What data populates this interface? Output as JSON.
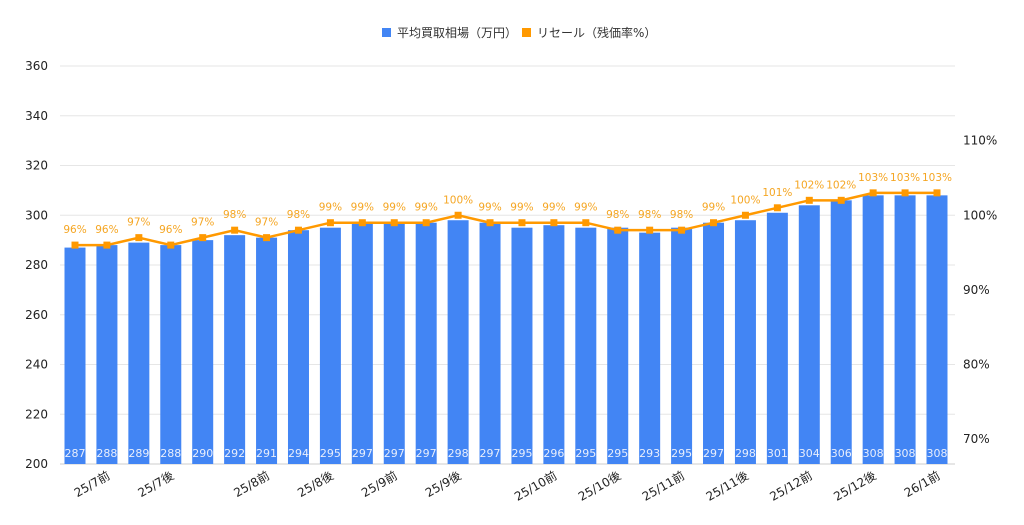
{
  "chart_data": {
    "type": "bar+line",
    "title": "",
    "legend_position": "top",
    "grid": true,
    "categories": [
      "",
      "25/7前",
      "",
      "25/7後",
      "",
      "",
      "25/8前",
      "",
      "25/8後",
      "",
      "25/9前",
      "",
      "25/9後",
      "",
      "",
      "25/10前",
      "",
      "25/10後",
      "",
      "25/11前",
      "",
      "25/11後",
      "",
      "25/12前",
      "",
      "25/12後",
      "",
      "26/1前"
    ],
    "series": [
      {
        "name": "平均買取相場（万円）",
        "type": "bar",
        "axis": "left",
        "color": "#4285f4",
        "values": [
          287,
          288,
          289,
          288,
          290,
          292,
          291,
          294,
          295,
          297,
          297,
          297,
          298,
          297,
          295,
          296,
          295,
          295,
          293,
          295,
          297,
          298,
          301,
          304,
          306,
          308,
          308,
          308
        ],
        "data_labels": [
          "287",
          "288",
          "289",
          "288",
          "290",
          "292",
          "291",
          "294",
          "295",
          "297",
          "297",
          "297",
          "298",
          "297",
          "295",
          "296",
          "295",
          "295",
          "293",
          "295",
          "297",
          "298",
          "301",
          "304",
          "306",
          "308",
          "308",
          "308"
        ]
      },
      {
        "name": "リセール（残価率%）",
        "type": "line",
        "axis": "right",
        "color": "#ff9900",
        "values": [
          96,
          96,
          97,
          96,
          97,
          98,
          97,
          98,
          99,
          99,
          99,
          99,
          100,
          99,
          99,
          99,
          99,
          98,
          98,
          98,
          99,
          100,
          101,
          102,
          102,
          103,
          103,
          103
        ],
        "data_labels": [
          "96%",
          "96%",
          "97%",
          "96%",
          "97%",
          "98%",
          "97%",
          "98%",
          "99%",
          "99%",
          "99%",
          "99%",
          "100%",
          "99%",
          "99%",
          "99%",
          "99%",
          "98%",
          "98%",
          "98%",
          "99%",
          "100%",
          "101%",
          "102%",
          "102%",
          "103%",
          "103%",
          "103%"
        ]
      }
    ],
    "left_axis": {
      "ylim": [
        200,
        360
      ],
      "ticks": [
        "200",
        "220",
        "240",
        "260",
        "280",
        "300",
        "320",
        "340",
        "360"
      ]
    },
    "right_axis": {
      "ylim": [
        70,
        120
      ],
      "ticks": [
        "70%",
        "80%",
        "90%",
        "100%",
        "110%"
      ],
      "tick_values": [
        70,
        80,
        90,
        100,
        110
      ]
    }
  }
}
